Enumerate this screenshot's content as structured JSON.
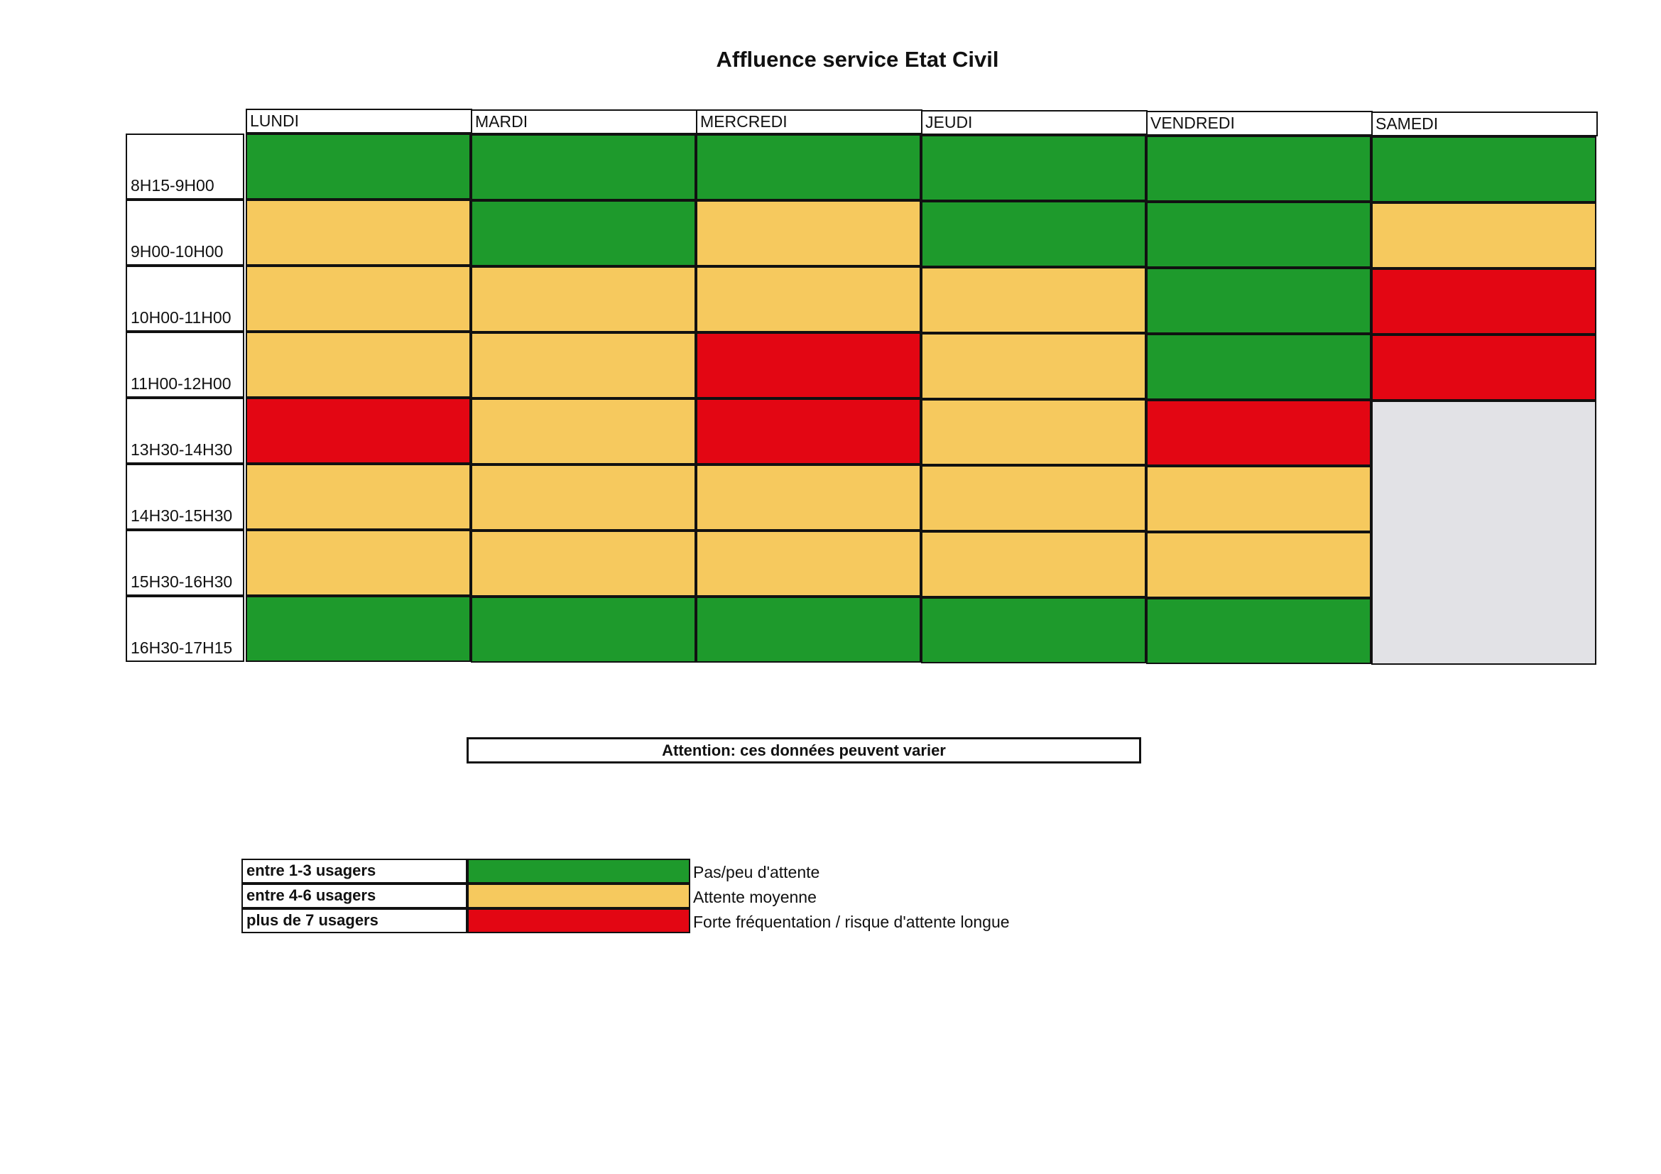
{
  "chart_data": {
    "type": "heatmap",
    "title": "Affluence service Etat Civil",
    "columns": [
      "LUNDI",
      "MARDI",
      "MERCREDI",
      "JEUDI",
      "VENDREDI",
      "SAMEDI"
    ],
    "rows": [
      "8H15-9H00",
      "9H00-10H00",
      "10H00-11H00",
      "11H00-12H00",
      "13H30-14H30",
      "14H30-15H30",
      "15H30-16H30",
      "16H30-17H15"
    ],
    "levels": [
      [
        "low",
        "low",
        "low",
        "low",
        "low",
        "low"
      ],
      [
        "medium",
        "low",
        "medium",
        "low",
        "low",
        "medium"
      ],
      [
        "medium",
        "medium",
        "medium",
        "medium",
        "low",
        "high"
      ],
      [
        "medium",
        "medium",
        "high",
        "medium",
        "low",
        "high"
      ],
      [
        "high",
        "medium",
        "high",
        "medium",
        "high",
        "closed"
      ],
      [
        "medium",
        "medium",
        "medium",
        "medium",
        "medium",
        "closed"
      ],
      [
        "medium",
        "medium",
        "medium",
        "medium",
        "medium",
        "closed"
      ],
      [
        "low",
        "low",
        "low",
        "low",
        "low",
        "closed"
      ]
    ],
    "colors": {
      "low": "#1e9a2c",
      "medium": "#f6c95e",
      "high": "#e30613",
      "closed": "#e2e2e6"
    },
    "legend": [
      {
        "level": "low",
        "label": "entre 1-3 usagers",
        "description": "Pas/peu d'attente"
      },
      {
        "level": "medium",
        "label": "entre 4-6 usagers",
        "description": "Attente moyenne"
      },
      {
        "level": "high",
        "label": "plus de 7 usagers",
        "description": "Forte fréquentation / risque d'attente longue"
      }
    ]
  },
  "notice": "Attention: ces données peuvent varier"
}
